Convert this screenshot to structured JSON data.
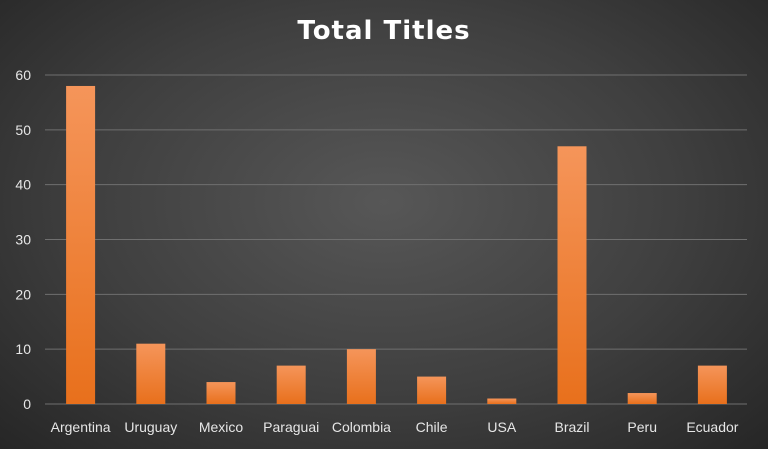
{
  "chart_data": {
    "type": "bar",
    "title": "Total Titles",
    "categories": [
      "Argentina",
      "Uruguay",
      "Mexico",
      "Paraguai",
      "Colombia",
      "Chile",
      "USA",
      "Brazil",
      "Peru",
      "Ecuador"
    ],
    "values": [
      58,
      11,
      4,
      7,
      10,
      5,
      1,
      47,
      2,
      7
    ],
    "xlabel": "",
    "ylabel": "",
    "ylim": [
      0,
      60
    ],
    "yticks": [
      0,
      10,
      20,
      30,
      40,
      50,
      60
    ],
    "grid": true,
    "bar_color": "#f07c2a",
    "bar_color_light": "#f5955a",
    "bar_color_dark": "#e8701c"
  }
}
